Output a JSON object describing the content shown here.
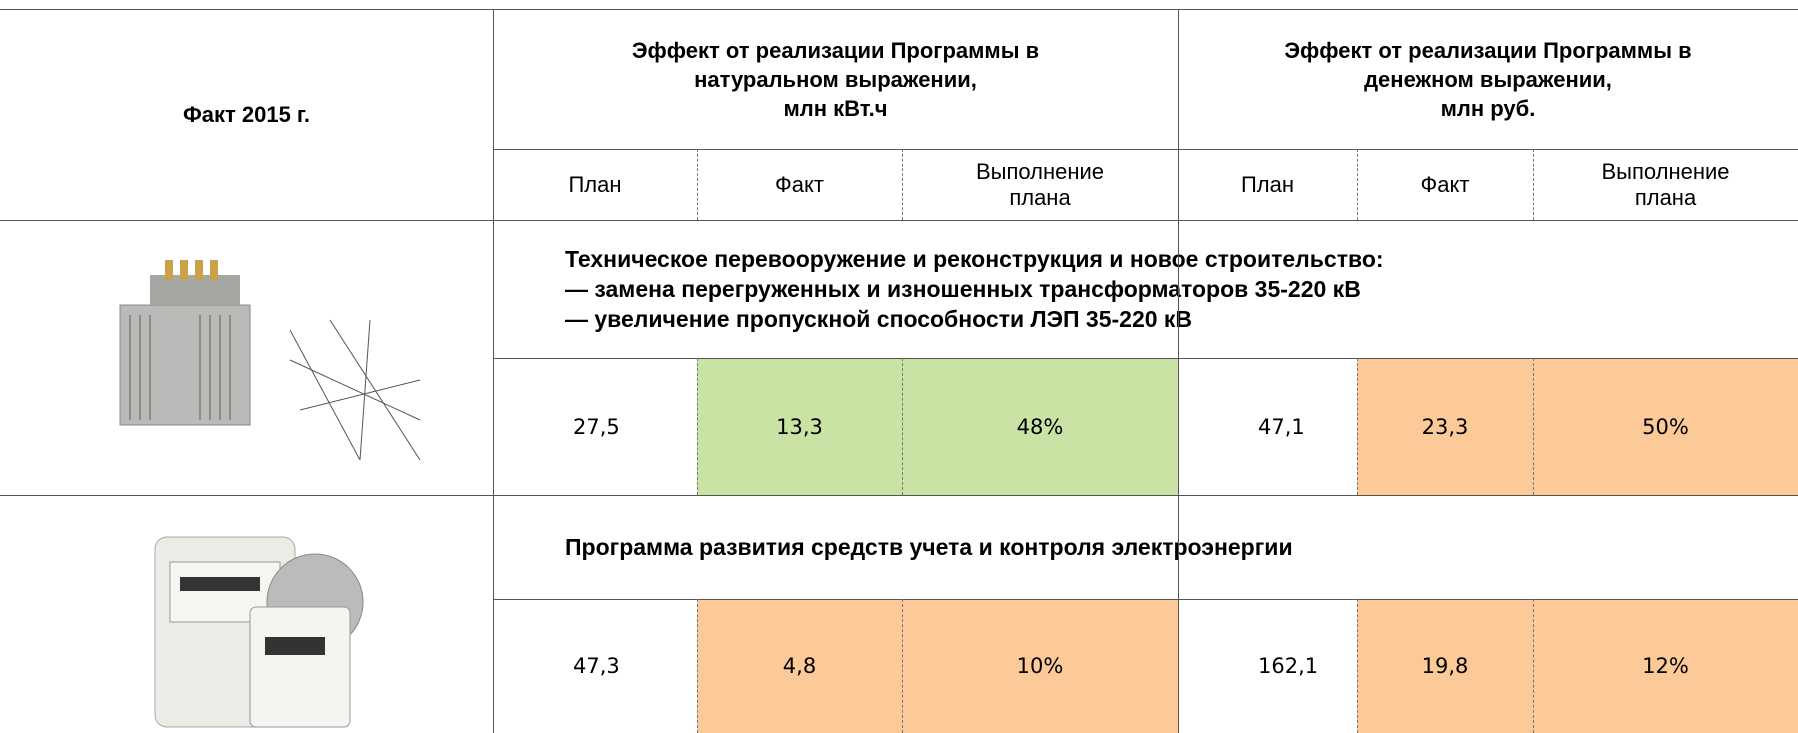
{
  "header": {
    "title": "Факт 2015 г.",
    "groups": [
      {
        "lines": [
          "Эффект от реализации Программы в",
          "натуральном выражении,",
          "млн кВт.ч"
        ],
        "columns": [
          {
            "lines": [
              "План"
            ]
          },
          {
            "lines": [
              "Факт"
            ]
          },
          {
            "lines": [
              "Выполнение",
              "плана"
            ]
          }
        ]
      },
      {
        "lines": [
          "Эффект от реализации Программы в",
          "денежном выражении,",
          "млн руб."
        ],
        "columns": [
          {
            "lines": [
              "План"
            ]
          },
          {
            "lines": [
              "Факт"
            ]
          },
          {
            "lines": [
              "Выполнение",
              "плана"
            ]
          }
        ]
      }
    ]
  },
  "sections": [
    {
      "title_lines": [
        "Техническое перевооружение и реконструкция и новое строительство:",
        "— замена перегруженных и изношенных трансформаторов 35-220 кВ",
        "— увеличение пропускной способности ЛЭП 35-220 кВ"
      ],
      "cells": [
        {
          "text": "27,5"
        },
        {
          "text": "13,3",
          "color": "#c9e3a5"
        },
        {
          "text": "48%",
          "color": "#c9e3a5"
        },
        {
          "text": "47,1"
        },
        {
          "text": "23,3",
          "color": "#fcc999"
        },
        {
          "text": "50%",
          "color": "#fcc999"
        }
      ]
    },
    {
      "title_lines": [
        "Программа развития средств учета и контроля электроэнергии"
      ],
      "cells": [
        {
          "text": "47,3"
        },
        {
          "text": "4,8",
          "color": "#fcc999"
        },
        {
          "text": "10%",
          "color": "#fcc999"
        },
        {
          "text": "162,1"
        },
        {
          "text": "19,8",
          "color": "#fcc999"
        },
        {
          "text": "12%",
          "color": "#fcc999"
        }
      ]
    }
  ]
}
